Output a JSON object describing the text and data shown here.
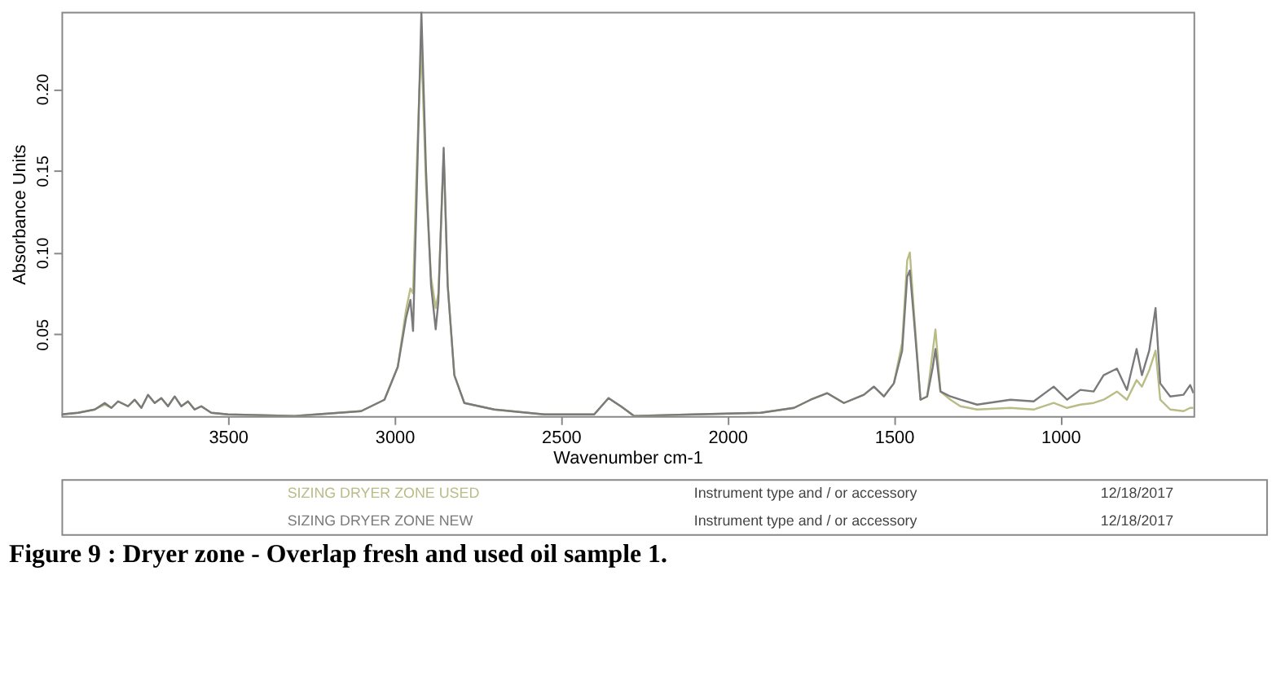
{
  "chart_data": {
    "type": "line",
    "title": "Figure 9 : Dryer zone - Overlap fresh and used oil sample 1.",
    "xlabel": "Wavenumber cm-1",
    "ylabel": "Absorbance Units",
    "x": [
      4000,
      3950,
      3900,
      3870,
      3850,
      3830,
      3800,
      3780,
      3760,
      3740,
      3720,
      3700,
      3680,
      3660,
      3640,
      3620,
      3600,
      3580,
      3550,
      3500,
      3300,
      3100,
      3030,
      2990,
      2965,
      2952,
      2944,
      2935,
      2925,
      2919,
      2905,
      2890,
      2876,
      2868,
      2852,
      2840,
      2820,
      2790,
      2700,
      2550,
      2400,
      2357,
      2320,
      2280,
      2100,
      1900,
      1800,
      1750,
      1700,
      1650,
      1590,
      1560,
      1530,
      1500,
      1475,
      1460,
      1452,
      1440,
      1420,
      1400,
      1383,
      1375,
      1360,
      1330,
      1300,
      1250,
      1150,
      1080,
      1020,
      980,
      940,
      900,
      870,
      830,
      800,
      771,
      755,
      733,
      714,
      700,
      670,
      630,
      610,
      600
    ],
    "series": [
      {
        "name": "SIZING DRYER ZONE USED",
        "color": "#b9bc85",
        "values": [
          0.001,
          0.002,
          0.004,
          0.007,
          0.005,
          0.009,
          0.006,
          0.01,
          0.005,
          0.013,
          0.008,
          0.011,
          0.006,
          0.012,
          0.006,
          0.009,
          0.004,
          0.006,
          0.002,
          0.001,
          0.0,
          0.003,
          0.01,
          0.03,
          0.065,
          0.078,
          0.075,
          0.14,
          0.2,
          0.225,
          0.14,
          0.085,
          0.066,
          0.075,
          0.16,
          0.08,
          0.025,
          0.008,
          0.004,
          0.001,
          0.001,
          0.011,
          0.006,
          0.0,
          0.001,
          0.002,
          0.005,
          0.01,
          0.014,
          0.008,
          0.013,
          0.018,
          0.012,
          0.02,
          0.045,
          0.095,
          0.1,
          0.065,
          0.01,
          0.012,
          0.04,
          0.053,
          0.015,
          0.01,
          0.006,
          0.004,
          0.005,
          0.004,
          0.008,
          0.005,
          0.007,
          0.008,
          0.01,
          0.015,
          0.01,
          0.022,
          0.018,
          0.028,
          0.04,
          0.01,
          0.004,
          0.003,
          0.005,
          0.005
        ]
      },
      {
        "name": "SIZING DRYER ZONE NEW",
        "color": "#7a7a7a",
        "values": [
          0.001,
          0.002,
          0.004,
          0.008,
          0.005,
          0.009,
          0.006,
          0.01,
          0.005,
          0.013,
          0.008,
          0.011,
          0.006,
          0.012,
          0.006,
          0.009,
          0.004,
          0.006,
          0.002,
          0.001,
          0.0,
          0.003,
          0.01,
          0.03,
          0.06,
          0.071,
          0.052,
          0.12,
          0.2,
          0.247,
          0.15,
          0.08,
          0.053,
          0.07,
          0.164,
          0.08,
          0.025,
          0.008,
          0.004,
          0.001,
          0.001,
          0.011,
          0.006,
          0.0,
          0.001,
          0.002,
          0.005,
          0.01,
          0.014,
          0.008,
          0.013,
          0.018,
          0.012,
          0.02,
          0.04,
          0.085,
          0.089,
          0.06,
          0.01,
          0.012,
          0.03,
          0.041,
          0.015,
          0.012,
          0.01,
          0.007,
          0.01,
          0.009,
          0.018,
          0.01,
          0.016,
          0.015,
          0.025,
          0.029,
          0.016,
          0.041,
          0.025,
          0.04,
          0.066,
          0.02,
          0.012,
          0.013,
          0.019,
          0.014
        ]
      }
    ],
    "xlim": [
      4000,
      600
    ],
    "xticks": [
      3500,
      3000,
      2500,
      2000,
      1500,
      1000
    ],
    "ylim": [
      0,
      0.247
    ],
    "yticks": [
      0.05,
      {
        "value": 0.1,
        "label": "0.10"
      },
      0.15,
      {
        "value": 0.2,
        "label": "0.20"
      }
    ],
    "grid": false,
    "legend": "bottom",
    "annotations": [
      "Instrument type and / or accessory",
      "12/18/2017",
      "Instrument type and / or accessory",
      "12/18/2017"
    ]
  }
}
